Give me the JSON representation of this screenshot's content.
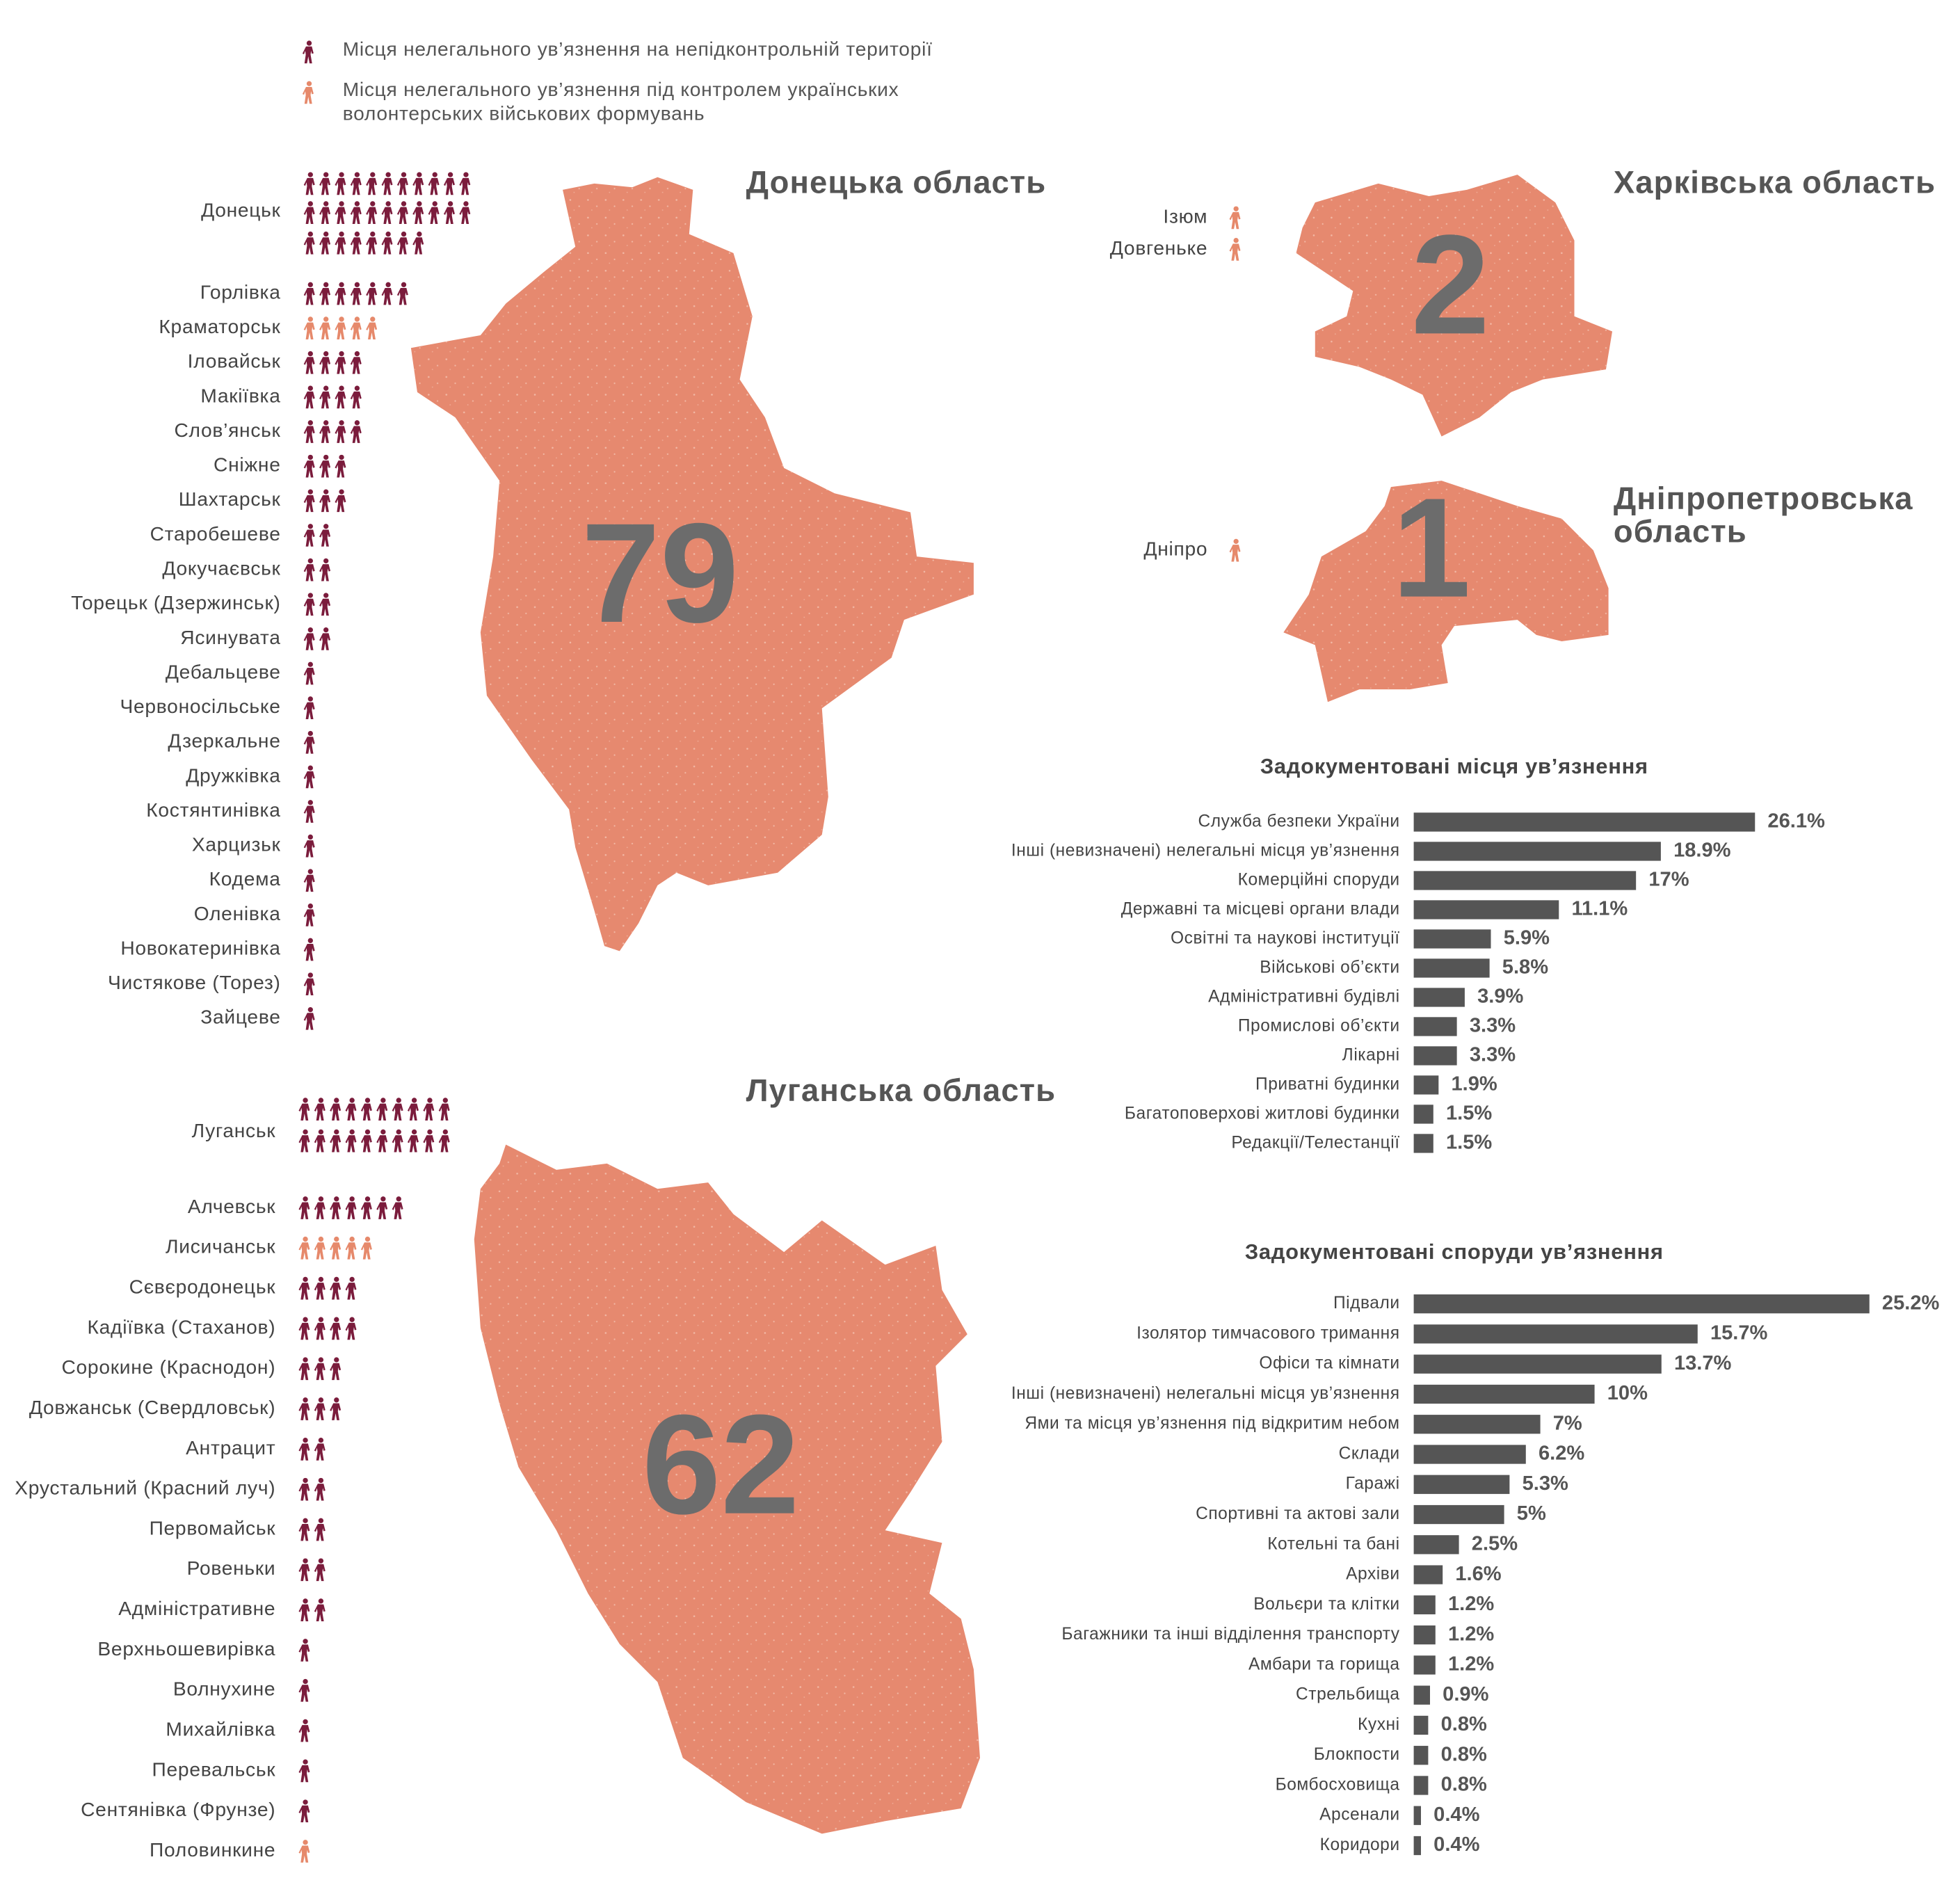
{
  "legend": [
    {
      "label": "Місця нелегального ув’язнення на непідконтрольній території",
      "color": "#7b1c3c"
    },
    {
      "label": "Місця нелегального ув’язнення під контролем українських волонтерських військових формувань",
      "color": "#e6896b"
    }
  ],
  "chart_data": [
    {
      "type": "pictograph",
      "title": "Донецька область",
      "total": 79,
      "categories": [
        "Донецьк",
        "Горлівка",
        "Краматорськ",
        "Іловайськ",
        "Макіївка",
        "Слов’янськ",
        "Сніжне",
        "Шахтарськ",
        "Старобешеве",
        "Докучаєвськ",
        "Торецьк (Дзержинськ)",
        "Ясинувата",
        "Дебальцеве",
        "Червоносільське",
        "Дзеркальне",
        "Дружківка",
        "Костянтинівка",
        "Харцизьк",
        "Кодема",
        "Оленівка",
        "Новокатеринівка",
        "Чистякове (Торез)",
        "Зайцеве"
      ],
      "values": [
        30,
        7,
        5,
        4,
        4,
        4,
        3,
        3,
        2,
        2,
        2,
        2,
        1,
        1,
        1,
        1,
        1,
        1,
        1,
        1,
        1,
        1,
        1
      ],
      "colors": [
        "#7b1c3c",
        "#7b1c3c",
        "#e6896b",
        "#7b1c3c",
        "#7b1c3c",
        "#7b1c3c",
        "#7b1c3c",
        "#7b1c3c",
        "#7b1c3c",
        "#7b1c3c",
        "#7b1c3c",
        "#7b1c3c",
        "#7b1c3c",
        "#7b1c3c",
        "#7b1c3c",
        "#7b1c3c",
        "#7b1c3c",
        "#7b1c3c",
        "#7b1c3c",
        "#7b1c3c",
        "#7b1c3c",
        "#7b1c3c",
        "#7b1c3c"
      ]
    },
    {
      "type": "pictograph",
      "title": "Харківська область",
      "total": 2,
      "categories": [
        "Ізюм",
        "Довгеньке"
      ],
      "values": [
        1,
        1
      ],
      "colors": [
        "#e6896b",
        "#e6896b"
      ]
    },
    {
      "type": "pictograph",
      "title": "Дніпропетровська область",
      "total": 1,
      "categories": [
        "Дніпро"
      ],
      "values": [
        1
      ],
      "colors": [
        "#e6896b"
      ]
    },
    {
      "type": "pictograph",
      "title": "Луганська область",
      "total": 62,
      "categories": [
        "Луганськ",
        "Алчевськ",
        "Лисичанськ",
        "Сєвєродонецьк",
        "Кадіївка (Стаханов)",
        "Сорокине (Краснодон)",
        "Довжанськ (Свердловськ)",
        "Антрацит",
        "Хрустальний (Красний луч)",
        "Первомайськ",
        "Ровеньки",
        "Адміністративне",
        "Верхньошевирівка",
        "Волнухине",
        "Михайлівка",
        "Перевальськ",
        "Сентянівка (Фрунзе)",
        "Половинкине"
      ],
      "values": [
        20,
        7,
        5,
        4,
        4,
        3,
        3,
        2,
        2,
        2,
        2,
        2,
        1,
        1,
        1,
        1,
        1,
        1
      ],
      "colors": [
        "#7b1c3c",
        "#7b1c3c",
        "#e6896b",
        "#7b1c3c",
        "#7b1c3c",
        "#7b1c3c",
        "#7b1c3c",
        "#7b1c3c",
        "#7b1c3c",
        "#7b1c3c",
        "#7b1c3c",
        "#7b1c3c",
        "#7b1c3c",
        "#7b1c3c",
        "#7b1c3c",
        "#7b1c3c",
        "#7b1c3c",
        "#e6896b"
      ]
    },
    {
      "type": "bar",
      "title": "Задокументовані місця ув’язнення",
      "color": "#555555",
      "categories": [
        "Служба безпеки України",
        "Інші (невизначені) нелегальні місця ув’язнення",
        "Комерційні споруди",
        "Державні та місцеві органи влади",
        "Освітні та наукові інституції",
        "Військові об’єкти",
        "Адміністративні будівлі",
        "Промислові об’єкти",
        "Лікарні",
        "Приватні будинки",
        "Багатоповерхові житлові будинки",
        "Редакції/Телестанції"
      ],
      "values": [
        26.1,
        18.9,
        17,
        11.1,
        5.9,
        5.8,
        3.9,
        3.3,
        3.3,
        1.9,
        1.5,
        1.5
      ],
      "value_labels": [
        "26.1%",
        "18.9%",
        "17%",
        "11.1%",
        "5.9%",
        "5.8%",
        "3.9%",
        "3.3%",
        "3.3%",
        "1.9%",
        "1.5%",
        "1.5%"
      ]
    },
    {
      "type": "bar",
      "title": "Задокументовані споруди ув’язнення",
      "color": "#555555",
      "categories": [
        "Підвали",
        "Ізолятор тимчасового тримання",
        "Офіси та кімнати",
        "Інші (невизначені) нелегальні місця ув’язнення",
        "Ями та місця ув’язнення під відкритим небом",
        "Склади",
        "Гаражі",
        "Спортивні та актові зали",
        "Котельні та бані",
        "Архіви",
        "Вольєри та клітки",
        "Багажники та інші відділення транспорту",
        "Амбари та горища",
        "Стрельбища",
        "Кухні",
        "Блокпости",
        "Бомбосховища",
        "Арсенали",
        "Коридори"
      ],
      "values": [
        25.2,
        15.7,
        13.7,
        10,
        7,
        6.2,
        5.3,
        5,
        2.5,
        1.6,
        1.2,
        1.2,
        1.2,
        0.9,
        0.8,
        0.8,
        0.8,
        0.4,
        0.4
      ],
      "value_labels": [
        "25.2%",
        "15.7%",
        "13.7%",
        "10%",
        "7%",
        "6.2%",
        "5.3%",
        "5%",
        "2.5%",
        "1.6%",
        "1.2%",
        "1.2%",
        "1.2%",
        "0.9%",
        "0.8%",
        "0.8%",
        "0.8%",
        "0.4%",
        "0.4%"
      ]
    }
  ]
}
